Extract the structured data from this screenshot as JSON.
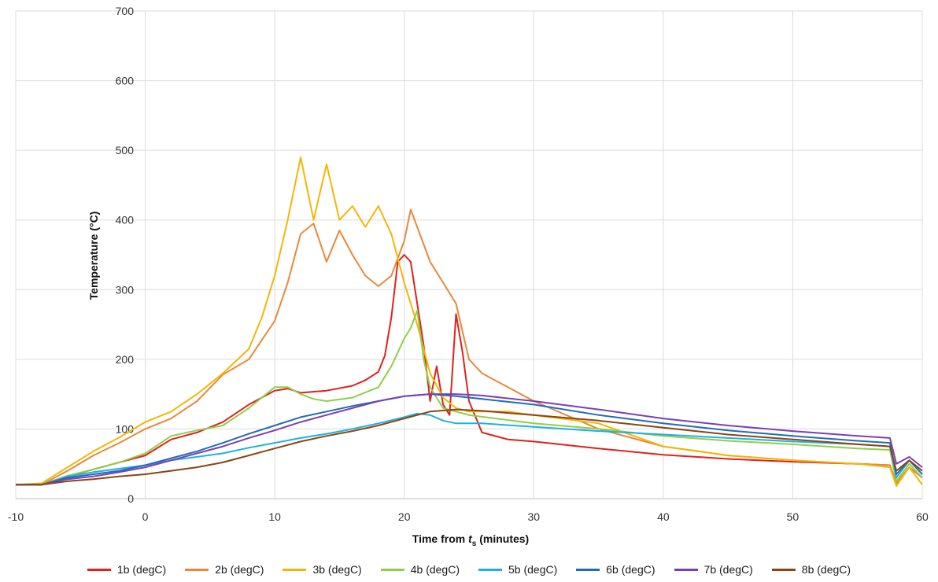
{
  "chart_data": {
    "type": "line",
    "xlabel_prefix": "Time from ",
    "xlabel_var": "t",
    "xlabel_sub": "s",
    "xlabel_suffix": " (minutes)",
    "ylabel": "Temperature (°C)",
    "xlim": [
      -10,
      60
    ],
    "ylim": [
      0,
      700
    ],
    "xticks": [
      -10,
      0,
      10,
      20,
      30,
      40,
      50,
      60
    ],
    "yticks": [
      0,
      100,
      200,
      300,
      400,
      500,
      600,
      700
    ],
    "grid": true,
    "legend_position": "bottom",
    "series": [
      {
        "name": "1b (degC)",
        "color": "#e0211d",
        "points": [
          [
            -10,
            20
          ],
          [
            -8,
            20
          ],
          [
            -6,
            32
          ],
          [
            -4,
            42
          ],
          [
            -2,
            52
          ],
          [
            0,
            62
          ],
          [
            2,
            85
          ],
          [
            4,
            95
          ],
          [
            6,
            110
          ],
          [
            8,
            135
          ],
          [
            10,
            155
          ],
          [
            11,
            158
          ],
          [
            12,
            152
          ],
          [
            14,
            155
          ],
          [
            16,
            162
          ],
          [
            17,
            170
          ],
          [
            18,
            182
          ],
          [
            18.5,
            205
          ],
          [
            19,
            260
          ],
          [
            19.5,
            340
          ],
          [
            20,
            350
          ],
          [
            20.5,
            340
          ],
          [
            21,
            280
          ],
          [
            21.5,
            220
          ],
          [
            22,
            140
          ],
          [
            22.5,
            190
          ],
          [
            23,
            135
          ],
          [
            23.5,
            120
          ],
          [
            24,
            265
          ],
          [
            24.5,
            210
          ],
          [
            25,
            140
          ],
          [
            26,
            95
          ],
          [
            28,
            85
          ],
          [
            30,
            82
          ],
          [
            35,
            72
          ],
          [
            40,
            63
          ],
          [
            45,
            57
          ],
          [
            50,
            53
          ],
          [
            55,
            50
          ],
          [
            57.5,
            48
          ],
          [
            58,
            22
          ],
          [
            59,
            45
          ],
          [
            60,
            30
          ]
        ]
      },
      {
        "name": "2b (degC)",
        "color": "#e8893a",
        "points": [
          [
            -10,
            20
          ],
          [
            -8,
            20
          ],
          [
            -6,
            40
          ],
          [
            -4,
            62
          ],
          [
            -2,
            80
          ],
          [
            0,
            100
          ],
          [
            2,
            115
          ],
          [
            4,
            140
          ],
          [
            6,
            178
          ],
          [
            8,
            200
          ],
          [
            10,
            255
          ],
          [
            11,
            310
          ],
          [
            12,
            380
          ],
          [
            13,
            395
          ],
          [
            14,
            340
          ],
          [
            15,
            385
          ],
          [
            16,
            350
          ],
          [
            17,
            320
          ],
          [
            18,
            305
          ],
          [
            19,
            320
          ],
          [
            20,
            370
          ],
          [
            20.5,
            415
          ],
          [
            21,
            390
          ],
          [
            22,
            340
          ],
          [
            23,
            310
          ],
          [
            24,
            280
          ],
          [
            25,
            200
          ],
          [
            26,
            180
          ],
          [
            28,
            160
          ],
          [
            30,
            140
          ],
          [
            35,
            100
          ],
          [
            40,
            75
          ],
          [
            45,
            62
          ],
          [
            50,
            55
          ],
          [
            55,
            50
          ],
          [
            57.5,
            48
          ],
          [
            58,
            22
          ],
          [
            59,
            45
          ],
          [
            60,
            30
          ]
        ]
      },
      {
        "name": "3b (degC)",
        "color": "#f2b705",
        "points": [
          [
            -10,
            20
          ],
          [
            -8,
            22
          ],
          [
            -6,
            45
          ],
          [
            -4,
            68
          ],
          [
            -2,
            88
          ],
          [
            0,
            110
          ],
          [
            2,
            125
          ],
          [
            4,
            150
          ],
          [
            6,
            180
          ],
          [
            8,
            215
          ],
          [
            9,
            260
          ],
          [
            10,
            320
          ],
          [
            11,
            400
          ],
          [
            12,
            490
          ],
          [
            13,
            400
          ],
          [
            14,
            480
          ],
          [
            15,
            400
          ],
          [
            16,
            420
          ],
          [
            17,
            390
          ],
          [
            18,
            420
          ],
          [
            19,
            380
          ],
          [
            20,
            310
          ],
          [
            21,
            250
          ],
          [
            22,
            180
          ],
          [
            23,
            145
          ],
          [
            24,
            130
          ],
          [
            25,
            125
          ],
          [
            28,
            125
          ],
          [
            30,
            120
          ],
          [
            35,
            108
          ],
          [
            40,
            75
          ],
          [
            45,
            62
          ],
          [
            50,
            55
          ],
          [
            55,
            50
          ],
          [
            57.5,
            45
          ],
          [
            58,
            18
          ],
          [
            59,
            45
          ],
          [
            60,
            20
          ]
        ]
      },
      {
        "name": "4b (degC)",
        "color": "#8fce4a",
        "points": [
          [
            -10,
            20
          ],
          [
            -8,
            20
          ],
          [
            -6,
            33
          ],
          [
            -4,
            42
          ],
          [
            -2,
            52
          ],
          [
            0,
            65
          ],
          [
            2,
            90
          ],
          [
            4,
            98
          ],
          [
            6,
            105
          ],
          [
            8,
            130
          ],
          [
            10,
            160
          ],
          [
            11,
            160
          ],
          [
            12,
            150
          ],
          [
            13,
            143
          ],
          [
            14,
            140
          ],
          [
            16,
            145
          ],
          [
            18,
            160
          ],
          [
            19,
            190
          ],
          [
            20,
            230
          ],
          [
            20.5,
            245
          ],
          [
            21,
            270
          ],
          [
            21.5,
            200
          ],
          [
            22,
            160
          ],
          [
            23,
            130
          ],
          [
            25,
            120
          ],
          [
            30,
            108
          ],
          [
            35,
            100
          ],
          [
            40,
            90
          ],
          [
            45,
            83
          ],
          [
            50,
            78
          ],
          [
            55,
            72
          ],
          [
            57.5,
            70
          ],
          [
            58,
            25
          ],
          [
            59,
            50
          ],
          [
            60,
            30
          ]
        ]
      },
      {
        "name": "5b (degC)",
        "color": "#20b0e0",
        "points": [
          [
            -10,
            20
          ],
          [
            -8,
            20
          ],
          [
            -6,
            32
          ],
          [
            -4,
            38
          ],
          [
            -2,
            43
          ],
          [
            0,
            48
          ],
          [
            2,
            55
          ],
          [
            4,
            60
          ],
          [
            6,
            65
          ],
          [
            8,
            73
          ],
          [
            10,
            80
          ],
          [
            12,
            87
          ],
          [
            14,
            93
          ],
          [
            16,
            100
          ],
          [
            18,
            108
          ],
          [
            20,
            117
          ],
          [
            21,
            122
          ],
          [
            22,
            120
          ],
          [
            23,
            112
          ],
          [
            24,
            108
          ],
          [
            26,
            108
          ],
          [
            30,
            103
          ],
          [
            35,
            97
          ],
          [
            40,
            92
          ],
          [
            45,
            87
          ],
          [
            50,
            82
          ],
          [
            55,
            78
          ],
          [
            57.5,
            75
          ],
          [
            58,
            30
          ],
          [
            59,
            55
          ],
          [
            60,
            35
          ]
        ]
      },
      {
        "name": "6b (degC)",
        "color": "#1f6db5",
        "points": [
          [
            -10,
            20
          ],
          [
            -8,
            20
          ],
          [
            -6,
            30
          ],
          [
            -4,
            35
          ],
          [
            -2,
            40
          ],
          [
            0,
            48
          ],
          [
            2,
            58
          ],
          [
            4,
            68
          ],
          [
            6,
            80
          ],
          [
            8,
            93
          ],
          [
            10,
            105
          ],
          [
            12,
            117
          ],
          [
            14,
            125
          ],
          [
            16,
            133
          ],
          [
            18,
            140
          ],
          [
            20,
            147
          ],
          [
            22,
            150
          ],
          [
            24,
            147
          ],
          [
            26,
            143
          ],
          [
            30,
            135
          ],
          [
            35,
            120
          ],
          [
            40,
            108
          ],
          [
            45,
            98
          ],
          [
            50,
            90
          ],
          [
            55,
            83
          ],
          [
            57.5,
            80
          ],
          [
            58,
            35
          ],
          [
            59,
            55
          ],
          [
            60,
            35
          ]
        ]
      },
      {
        "name": "7b (degC)",
        "color": "#7b3fb5",
        "points": [
          [
            -10,
            20
          ],
          [
            -8,
            20
          ],
          [
            -6,
            28
          ],
          [
            -4,
            32
          ],
          [
            -2,
            38
          ],
          [
            0,
            45
          ],
          [
            2,
            55
          ],
          [
            4,
            65
          ],
          [
            6,
            75
          ],
          [
            8,
            87
          ],
          [
            10,
            98
          ],
          [
            12,
            110
          ],
          [
            14,
            120
          ],
          [
            16,
            130
          ],
          [
            18,
            140
          ],
          [
            20,
            147
          ],
          [
            22,
            150
          ],
          [
            24,
            150
          ],
          [
            26,
            148
          ],
          [
            30,
            140
          ],
          [
            35,
            128
          ],
          [
            40,
            115
          ],
          [
            45,
            105
          ],
          [
            50,
            97
          ],
          [
            55,
            90
          ],
          [
            57.5,
            87
          ],
          [
            58,
            50
          ],
          [
            59,
            60
          ],
          [
            60,
            45
          ]
        ]
      },
      {
        "name": "8b (degC)",
        "color": "#8b4513",
        "points": [
          [
            -10,
            20
          ],
          [
            -8,
            20
          ],
          [
            -6,
            25
          ],
          [
            -4,
            28
          ],
          [
            -2,
            32
          ],
          [
            0,
            35
          ],
          [
            2,
            40
          ],
          [
            4,
            45
          ],
          [
            6,
            52
          ],
          [
            8,
            62
          ],
          [
            10,
            72
          ],
          [
            12,
            82
          ],
          [
            14,
            90
          ],
          [
            16,
            97
          ],
          [
            18,
            105
          ],
          [
            20,
            115
          ],
          [
            22,
            125
          ],
          [
            24,
            128
          ],
          [
            26,
            126
          ],
          [
            30,
            120
          ],
          [
            35,
            112
          ],
          [
            40,
            102
          ],
          [
            45,
            92
          ],
          [
            50,
            85
          ],
          [
            55,
            78
          ],
          [
            57.5,
            75
          ],
          [
            58,
            40
          ],
          [
            59,
            55
          ],
          [
            60,
            40
          ]
        ]
      }
    ]
  }
}
